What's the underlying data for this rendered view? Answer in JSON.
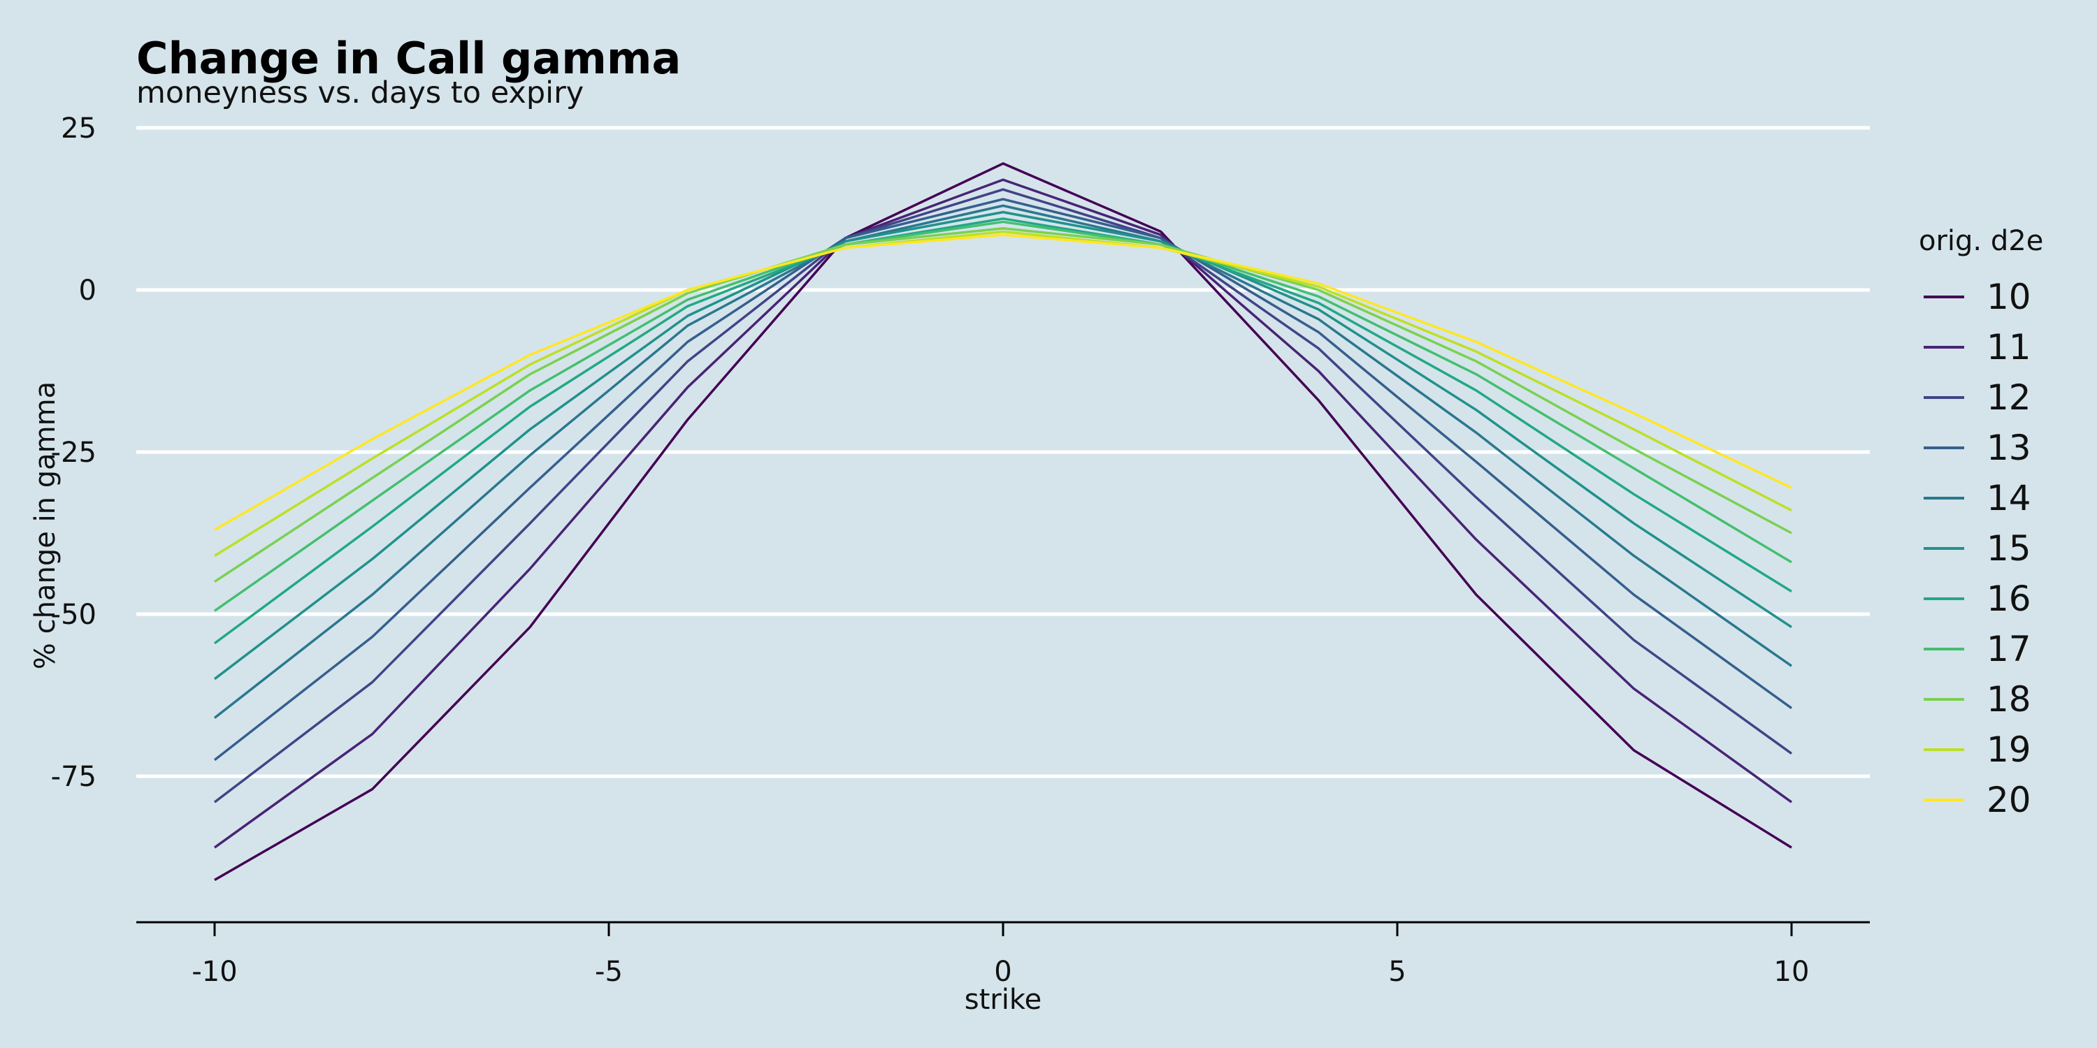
{
  "chart_data": {
    "type": "line",
    "title": "Change in Call gamma",
    "subtitle": "moneyness vs. days to expiry",
    "xlabel": "strike",
    "ylabel": "% change in gamma",
    "xlim": [
      -11,
      11
    ],
    "ylim": [
      -97,
      26
    ],
    "x_ticks": [
      -10,
      -5,
      0,
      5,
      10
    ],
    "y_ticks": [
      25,
      0,
      -25,
      -50,
      -75
    ],
    "grid": "horizontal major, white",
    "legend": {
      "title": "orig. d2e",
      "position": "right"
    },
    "x": [
      -10,
      -8,
      -6,
      -4,
      -2,
      0,
      2,
      4,
      6,
      8,
      10
    ],
    "series": [
      {
        "name": "10",
        "color": "#440154",
        "values": [
          -91,
          -77,
          -52,
          -20,
          8,
          19.5,
          9,
          -17,
          -47,
          -71,
          -86
        ]
      },
      {
        "name": "11",
        "color": "#482475",
        "values": [
          -86,
          -68.5,
          -43,
          -15,
          8,
          17,
          8.5,
          -12.5,
          -38.5,
          -61.5,
          -79
        ]
      },
      {
        "name": "12",
        "color": "#414487",
        "values": [
          -79,
          -60.5,
          -36,
          -11,
          8,
          15.5,
          8,
          -9,
          -32,
          -54,
          -71.5
        ]
      },
      {
        "name": "13",
        "color": "#355f8d",
        "values": [
          -72.5,
          -53.5,
          -30.5,
          -8,
          8,
          14,
          8,
          -6.5,
          -26.5,
          -47,
          -64.5
        ]
      },
      {
        "name": "14",
        "color": "#2a788e",
        "values": [
          -66,
          -47,
          -25.5,
          -5.5,
          7.5,
          13,
          7.5,
          -4.5,
          -22,
          -41,
          -58
        ]
      },
      {
        "name": "15",
        "color": "#21918c",
        "values": [
          -60,
          -41.5,
          -21.5,
          -4,
          7.5,
          12,
          7.5,
          -3,
          -18.5,
          -36,
          -52
        ]
      },
      {
        "name": "16",
        "color": "#22a884",
        "values": [
          -54.5,
          -36.5,
          -18,
          -2.5,
          7,
          11,
          7,
          -2,
          -15.5,
          -31.5,
          -46.5
        ]
      },
      {
        "name": "17",
        "color": "#44bf70",
        "values": [
          -49.5,
          -32.5,
          -15.5,
          -1.5,
          7,
          10.5,
          7,
          -1,
          -13,
          -27.5,
          -42
        ]
      },
      {
        "name": "18",
        "color": "#7ad151",
        "values": [
          -45,
          -29,
          -13,
          -0.5,
          7,
          9.5,
          7,
          0,
          -11,
          -24.5,
          -37.5
        ]
      },
      {
        "name": "19",
        "color": "#bddf26",
        "values": [
          -41,
          -26,
          -11.5,
          0,
          6.5,
          9,
          6.5,
          0.5,
          -9.5,
          -21.5,
          -34
        ]
      },
      {
        "name": "20",
        "color": "#fde725",
        "values": [
          -37,
          -23,
          -10,
          0,
          6.5,
          8.5,
          6.5,
          1,
          -8,
          -19,
          -30.5
        ]
      }
    ]
  }
}
